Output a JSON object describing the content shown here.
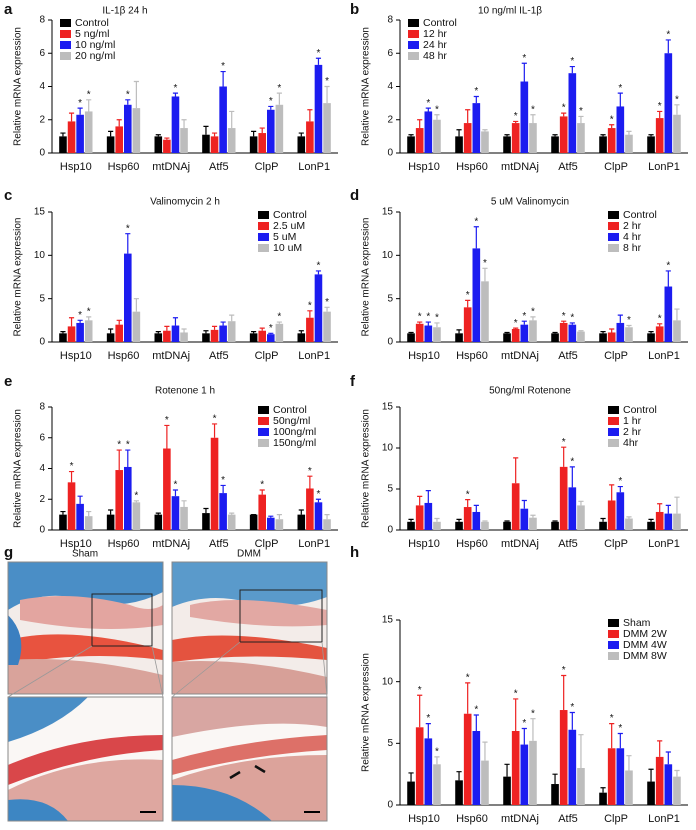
{
  "chart_data": [
    {
      "panel": "a",
      "type": "bar",
      "title": "IL-1β 24 h",
      "ylabel": "Relative mRNA expression",
      "categories": [
        "Hsp10",
        "Hsp60",
        "mtDNAj",
        "Atf5",
        "ClpP",
        "LonP1"
      ],
      "ylim": [
        0,
        8
      ],
      "yticks": [
        0,
        2,
        4,
        6,
        8
      ],
      "legend": "upper left",
      "significance_label": "*",
      "series": [
        {
          "name": "Control",
          "color": "#000000",
          "values": [
            1,
            1,
            1,
            1.1,
            1,
            1
          ],
          "errors": [
            0.2,
            0.3,
            0.1,
            0.5,
            0.3,
            0.2
          ],
          "significant": [
            false,
            false,
            false,
            false,
            false,
            false
          ]
        },
        {
          "name": "5 ng/ml",
          "color": "#ee2222",
          "values": [
            1.9,
            1.6,
            0.8,
            1,
            1.2,
            1.9
          ],
          "errors": [
            0.5,
            0.4,
            0.1,
            0.2,
            0.3,
            0.7
          ],
          "significant": [
            false,
            false,
            false,
            false,
            false,
            false
          ]
        },
        {
          "name": "10 ng/ml",
          "color": "#1c1cf0",
          "values": [
            2.3,
            2.9,
            3.4,
            4,
            2.6,
            5.3
          ],
          "errors": [
            0.4,
            0.3,
            0.2,
            0.9,
            0.2,
            0.4
          ],
          "significant": [
            true,
            true,
            true,
            true,
            true,
            true
          ]
        },
        {
          "name": "20 ng/ml",
          "color": "#bdbdbd",
          "values": [
            2.5,
            2.7,
            1.5,
            1.5,
            2.9,
            3
          ],
          "errors": [
            0.7,
            1.6,
            0.5,
            1,
            0.7,
            1
          ],
          "significant": [
            true,
            false,
            false,
            false,
            true,
            true
          ]
        }
      ]
    },
    {
      "panel": "b",
      "type": "bar",
      "title": "10 ng/ml IL-1β",
      "ylabel": "Relative mRNA expression",
      "categories": [
        "Hsp10",
        "Hsp60",
        "mtDNAj",
        "Atf5",
        "ClpP",
        "LonP1"
      ],
      "ylim": [
        0,
        8
      ],
      "yticks": [
        0,
        2,
        4,
        6,
        8
      ],
      "legend": "upper left",
      "significance_label": "*",
      "series": [
        {
          "name": "Control",
          "color": "#000000",
          "values": [
            1,
            1,
            1,
            1,
            1,
            1
          ],
          "errors": [
            0.1,
            0.4,
            0.1,
            0.1,
            0.1,
            0.1
          ],
          "significant": [
            false,
            false,
            false,
            false,
            false,
            false
          ]
        },
        {
          "name": "12 hr",
          "color": "#ee2222",
          "values": [
            1.5,
            1.8,
            1.8,
            2.2,
            1.5,
            2.1
          ],
          "errors": [
            0.5,
            0.8,
            0.1,
            0.2,
            0.2,
            0.4
          ],
          "significant": [
            false,
            false,
            true,
            true,
            true,
            true
          ]
        },
        {
          "name": "24 hr",
          "color": "#1c1cf0",
          "values": [
            2.5,
            3,
            4.3,
            4.8,
            2.8,
            6
          ],
          "errors": [
            0.2,
            0.4,
            1.1,
            0.4,
            0.8,
            0.8
          ],
          "significant": [
            true,
            true,
            true,
            true,
            true,
            true
          ]
        },
        {
          "name": "48 hr",
          "color": "#bdbdbd",
          "values": [
            2,
            1.3,
            1.8,
            1.8,
            1.1,
            2.3
          ],
          "errors": [
            0.3,
            0.1,
            0.5,
            0.4,
            0.2,
            0.6
          ],
          "significant": [
            true,
            false,
            true,
            true,
            false,
            true
          ]
        }
      ]
    },
    {
      "panel": "c",
      "type": "bar",
      "title": "Valinomycin 2 h",
      "ylabel": "Relative mRNA expression",
      "categories": [
        "Hsp10",
        "Hsp60",
        "mtDNAj",
        "Atf5",
        "ClpP",
        "LonP1"
      ],
      "ylim": [
        0,
        15
      ],
      "yticks": [
        0,
        5,
        10,
        15
      ],
      "legend": "upper right",
      "significance_label": "*",
      "series": [
        {
          "name": "Control",
          "color": "#000000",
          "values": [
            1,
            1,
            1,
            1,
            1,
            1
          ],
          "errors": [
            0.2,
            0.5,
            0.2,
            0.3,
            0.2,
            0.3
          ],
          "significant": [
            false,
            false,
            false,
            false,
            false,
            false
          ]
        },
        {
          "name": "2.5 uM",
          "color": "#ee2222",
          "values": [
            1.8,
            2,
            1.3,
            1.4,
            1.3,
            2.8
          ],
          "errors": [
            1,
            0.5,
            0.5,
            0.4,
            0.3,
            0.8
          ],
          "significant": [
            false,
            false,
            false,
            false,
            false,
            true
          ]
        },
        {
          "name": "5 uM",
          "color": "#1c1cf0",
          "values": [
            2.2,
            10.2,
            1.9,
            1.9,
            0.9,
            7.8
          ],
          "errors": [
            0.3,
            2.3,
            0.9,
            0.4,
            0.1,
            0.4
          ],
          "significant": [
            true,
            true,
            false,
            false,
            true,
            true
          ]
        },
        {
          "name": "10 uM",
          "color": "#bdbdbd",
          "values": [
            2.5,
            3.5,
            1.1,
            2.4,
            2.1,
            3.5
          ],
          "errors": [
            0.4,
            1.5,
            0.4,
            0.7,
            0.2,
            0.5
          ],
          "significant": [
            true,
            false,
            false,
            false,
            true,
            true
          ]
        }
      ]
    },
    {
      "panel": "d",
      "type": "bar",
      "title": "5 uM Valinomycin",
      "ylabel": "Relative mRNA expression",
      "categories": [
        "Hsp10",
        "Hsp60",
        "mtDNAj",
        "Atf5",
        "ClpP",
        "LonP1"
      ],
      "ylim": [
        0,
        15
      ],
      "yticks": [
        0,
        5,
        10,
        15
      ],
      "legend": "upper right",
      "significance_label": "*",
      "series": [
        {
          "name": "Control",
          "color": "#000000",
          "values": [
            1,
            1,
            1,
            1,
            1,
            1
          ],
          "errors": [
            0.1,
            0.4,
            0.1,
            0.1,
            0.2,
            0.2
          ],
          "significant": [
            false,
            false,
            false,
            false,
            false,
            false
          ]
        },
        {
          "name": "2 hr",
          "color": "#ee2222",
          "values": [
            2.1,
            4,
            1.5,
            2.2,
            1.1,
            1.8
          ],
          "errors": [
            0.2,
            0.8,
            0.1,
            0.2,
            0.4,
            0.3
          ],
          "significant": [
            true,
            true,
            true,
            true,
            false,
            true
          ]
        },
        {
          "name": "4 hr",
          "color": "#1c1cf0",
          "values": [
            1.9,
            10.8,
            2,
            2,
            2.2,
            6.4
          ],
          "errors": [
            0.4,
            2.5,
            0.4,
            0.2,
            0.9,
            1.8
          ],
          "significant": [
            true,
            true,
            true,
            true,
            false,
            true
          ]
        },
        {
          "name": "8 hr",
          "color": "#bdbdbd",
          "values": [
            1.7,
            7,
            2.5,
            1.2,
            1.7,
            2.5
          ],
          "errors": [
            0.5,
            1.5,
            0.4,
            0.1,
            0.2,
            1.3
          ],
          "significant": [
            true,
            true,
            true,
            false,
            true,
            false
          ]
        }
      ]
    },
    {
      "panel": "e",
      "type": "bar",
      "title": "Rotenone 1 h",
      "ylabel": "Relative mRNA expression",
      "categories": [
        "Hsp10",
        "Hsp60",
        "mtDNAj",
        "Atf5",
        "ClpP",
        "LonP1"
      ],
      "ylim": [
        0,
        8
      ],
      "yticks": [
        0,
        2,
        4,
        6,
        8
      ],
      "legend": "upper right",
      "significance_label": "*",
      "series": [
        {
          "name": "Control",
          "color": "#000000",
          "values": [
            1,
            1,
            1,
            1.1,
            1,
            1
          ],
          "errors": [
            0.2,
            0.3,
            0.1,
            0.3,
            0,
            0.3
          ],
          "significant": [
            false,
            false,
            false,
            false,
            false,
            false
          ]
        },
        {
          "name": "50ng/ml",
          "color": "#ee2222",
          "values": [
            3.1,
            3.9,
            5.3,
            6,
            2.3,
            2.7
          ],
          "errors": [
            0.7,
            1.3,
            1.5,
            0.9,
            0.3,
            0.8
          ],
          "significant": [
            true,
            true,
            true,
            true,
            true,
            true
          ]
        },
        {
          "name": "100ng/ml",
          "color": "#1c1cf0",
          "values": [
            1.7,
            4.1,
            2.2,
            2.4,
            0.8,
            1.8
          ],
          "errors": [
            0.5,
            1.1,
            0.4,
            0.5,
            0.1,
            0.2
          ],
          "significant": [
            false,
            true,
            true,
            true,
            false,
            true
          ]
        },
        {
          "name": "150ng/ml",
          "color": "#bdbdbd",
          "values": [
            0.9,
            1.8,
            1.5,
            1,
            0.7,
            0.7
          ],
          "errors": [
            0.3,
            0.1,
            0.4,
            0.1,
            0.3,
            0.3
          ],
          "significant": [
            false,
            true,
            false,
            false,
            false,
            false
          ]
        }
      ]
    },
    {
      "panel": "f",
      "type": "bar",
      "title": "50ng/ml Rotenone",
      "ylabel": "Relative mRNA expression",
      "categories": [
        "Hsp10",
        "Hsp60",
        "mtDNAj",
        "Atf5",
        "ClpP",
        "LonP1"
      ],
      "ylim": [
        0,
        15
      ],
      "yticks": [
        0,
        5,
        10,
        15
      ],
      "legend": "upper right",
      "significance_label": "*",
      "series": [
        {
          "name": "Control",
          "color": "#000000",
          "values": [
            1,
            1,
            1,
            1,
            1,
            1
          ],
          "errors": [
            0.3,
            0.3,
            0.1,
            0.1,
            0.4,
            0.3
          ],
          "significant": [
            false,
            false,
            false,
            false,
            false,
            false
          ]
        },
        {
          "name": "1 hr",
          "color": "#ee2222",
          "values": [
            3,
            2.8,
            5.7,
            7.7,
            3.6,
            2.2
          ],
          "errors": [
            1.1,
            0.9,
            3.1,
            2.4,
            1.9,
            1
          ],
          "significant": [
            false,
            true,
            false,
            true,
            false,
            false
          ]
        },
        {
          "name": "2 hr",
          "color": "#1c1cf0",
          "values": [
            3.3,
            2.2,
            2.6,
            5.2,
            4.6,
            2
          ],
          "errors": [
            1.5,
            0.8,
            1,
            2.5,
            0.7,
            1
          ],
          "significant": [
            false,
            false,
            false,
            true,
            true,
            false
          ]
        },
        {
          "name": "4hr",
          "color": "#bdbdbd",
          "values": [
            1,
            1,
            1.5,
            3,
            1.4,
            2
          ],
          "errors": [
            0.4,
            0.1,
            0.3,
            0.5,
            0.2,
            2
          ],
          "significant": [
            false,
            false,
            false,
            false,
            false,
            false
          ]
        }
      ]
    },
    {
      "panel": "h",
      "type": "bar",
      "ylabel": "Relative mRNA expression",
      "categories": [
        "Hsp10",
        "Hsp60",
        "mtDNAj",
        "Atf5",
        "ClpP",
        "LonP1"
      ],
      "ylim": [
        0,
        15
      ],
      "yticks": [
        0,
        5,
        10,
        15
      ],
      "legend": "upper right",
      "significance_label": "*",
      "series": [
        {
          "name": "Sham",
          "color": "#000000",
          "values": [
            1.9,
            2,
            2.3,
            1.7,
            1,
            1.9
          ],
          "errors": [
            0.7,
            0.7,
            1,
            0.8,
            0.4,
            1
          ],
          "significant": [
            false,
            false,
            false,
            false,
            false,
            false
          ]
        },
        {
          "name": "DMM 2W",
          "color": "#ee2222",
          "values": [
            6.3,
            7.4,
            6,
            7.7,
            4.6,
            3.9
          ],
          "errors": [
            2.6,
            2.5,
            2.6,
            2.8,
            2,
            1.3
          ],
          "significant": [
            true,
            true,
            true,
            true,
            true,
            false
          ]
        },
        {
          "name": "DMM 4W",
          "color": "#1c1cf0",
          "values": [
            5.4,
            6,
            4.9,
            6.1,
            4.6,
            3.3
          ],
          "errors": [
            1.2,
            1.3,
            1.3,
            1.4,
            1.2,
            1
          ],
          "significant": [
            true,
            true,
            true,
            true,
            true,
            false
          ]
        },
        {
          "name": "DMM 8W",
          "color": "#bdbdbd",
          "values": [
            3.3,
            3.6,
            5.2,
            3,
            2.8,
            2.3
          ],
          "errors": [
            0.6,
            1.5,
            1.8,
            2.7,
            1.2,
            0.5
          ],
          "significant": [
            true,
            false,
            true,
            false,
            false,
            false
          ]
        }
      ]
    }
  ],
  "histology": {
    "panel": "g",
    "columns": [
      "Sham",
      "DMM"
    ]
  }
}
